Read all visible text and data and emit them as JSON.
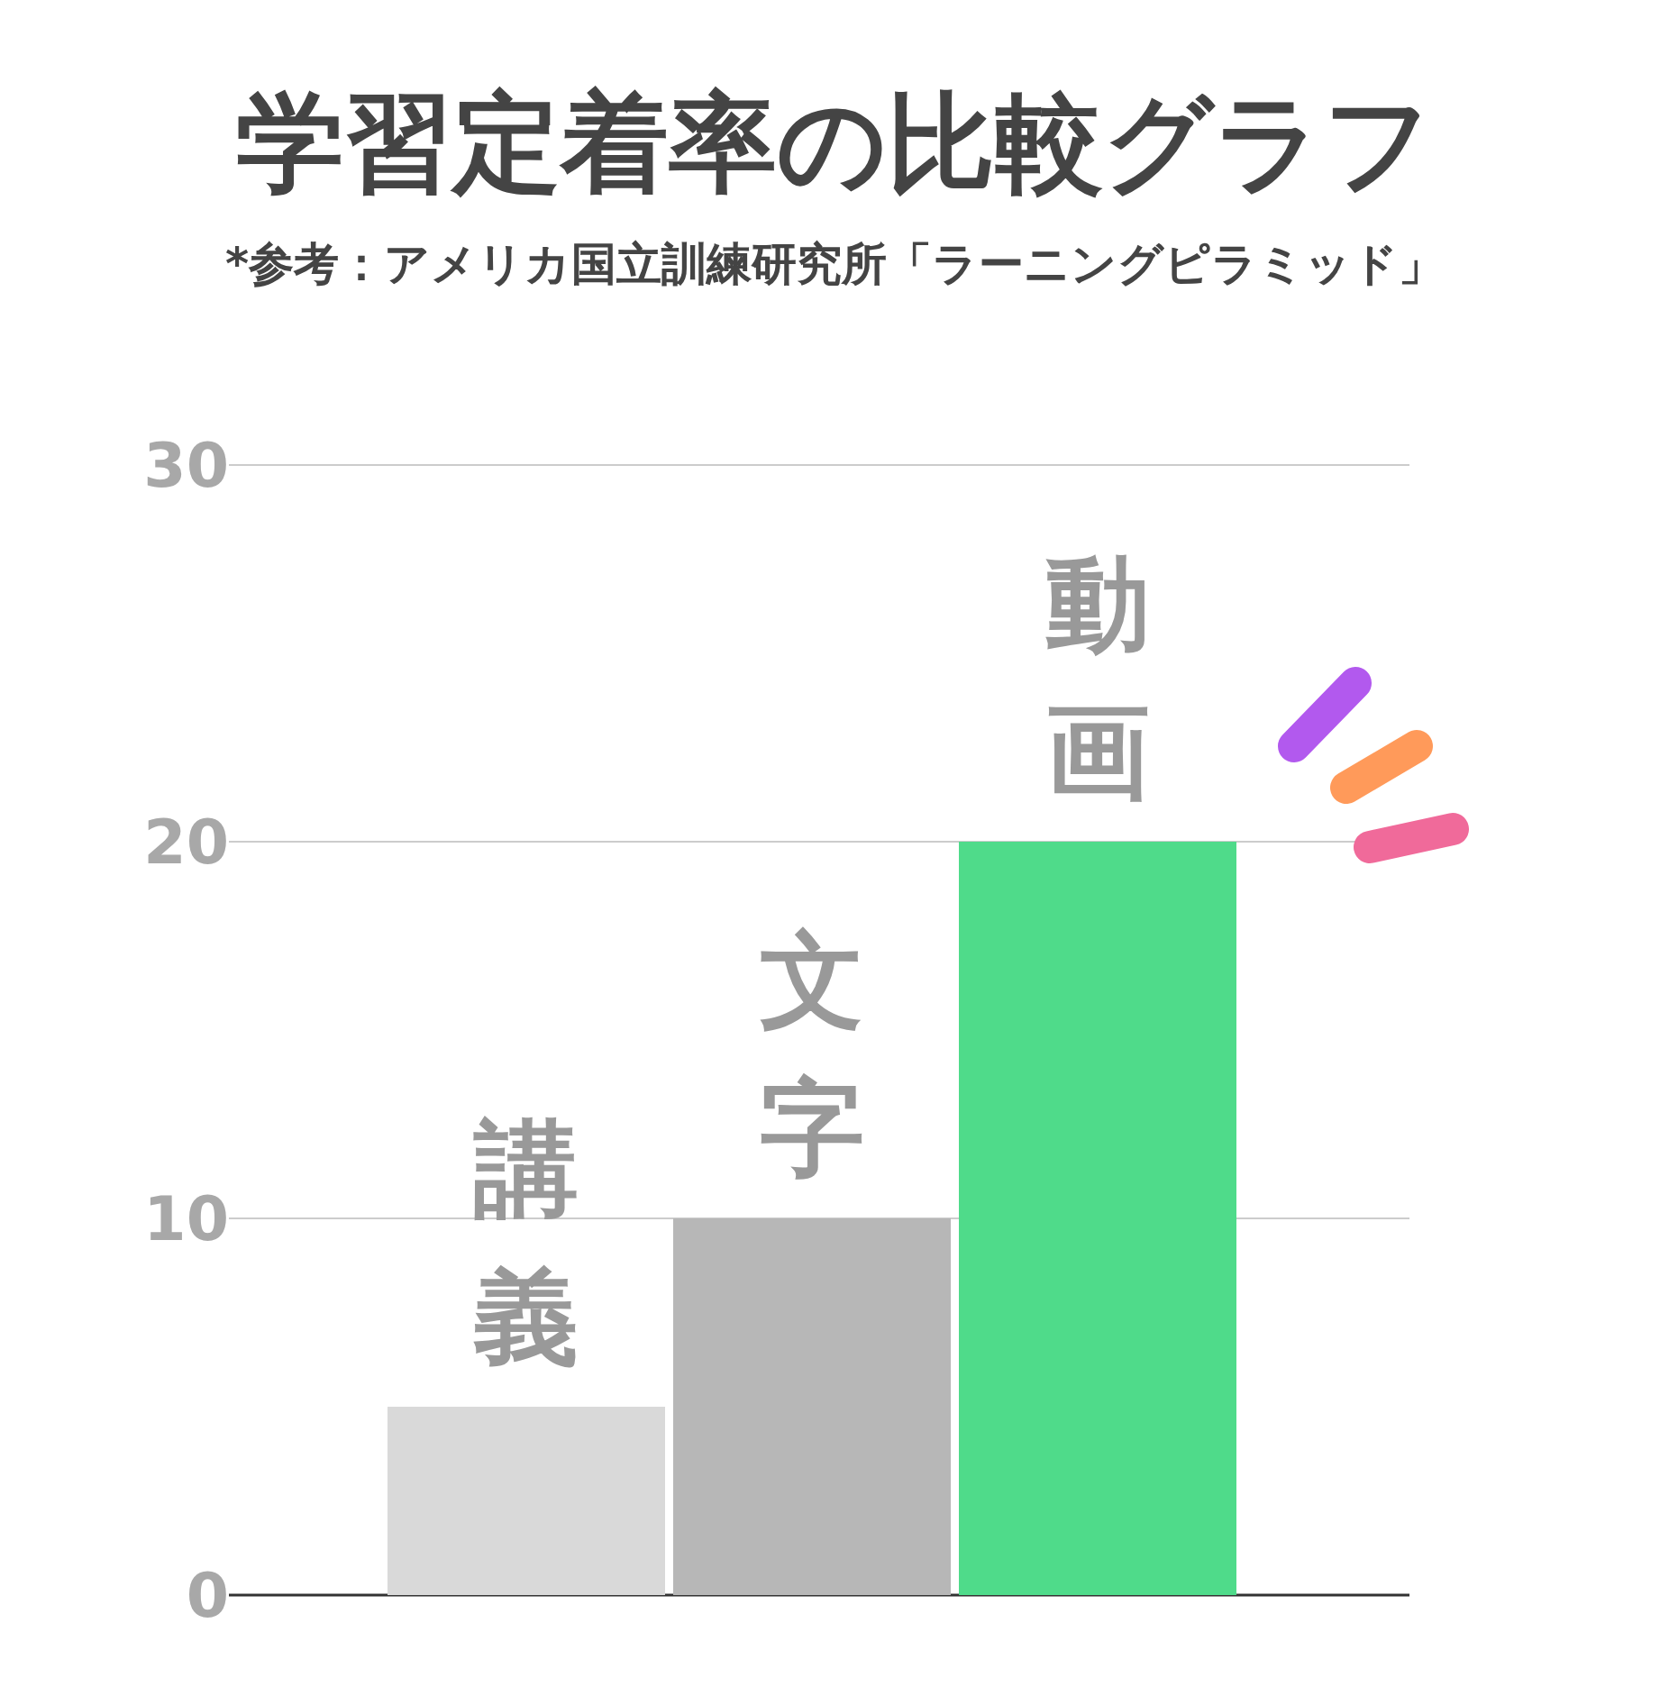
{
  "chart_data": {
    "type": "bar",
    "title": "学習定着率の比較グラフ",
    "subtitle": "*参考：アメリカ国立訓練研究所「ラーニングピラミッド」",
    "categories": [
      "講義",
      "文字",
      "動画"
    ],
    "values": [
      5,
      10,
      20
    ],
    "colors": [
      "#d9d9d9",
      "#b7b7b7",
      "#4fdb8a"
    ],
    "ylim": [
      0,
      30
    ],
    "yticks": [
      0,
      10,
      20,
      30
    ],
    "grid": "y"
  }
}
